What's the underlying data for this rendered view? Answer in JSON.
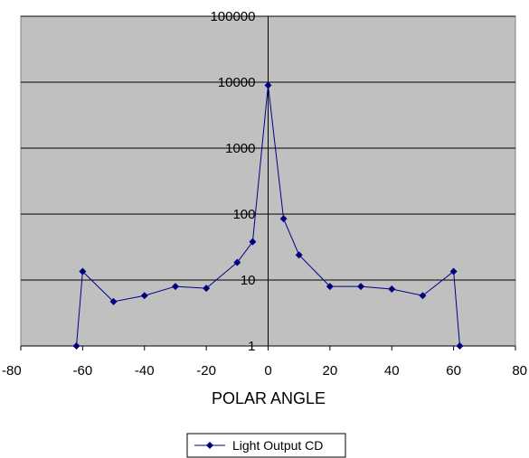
{
  "chart_data": {
    "type": "scatter",
    "title": "",
    "xlabel": "POLAR ANGLE",
    "ylabel": "",
    "xlim": [
      -80,
      80
    ],
    "ylim": [
      1,
      100000
    ],
    "yscale": "log",
    "x_ticks": [
      -80,
      -60,
      -40,
      -20,
      0,
      20,
      40,
      60,
      80
    ],
    "x_tick_labels": [
      "-80",
      "-60",
      "-40",
      "-20",
      "0",
      "20",
      "40",
      "60",
      "80"
    ],
    "y_ticks": [
      1,
      10,
      100,
      1000,
      10000,
      100000
    ],
    "y_tick_labels": [
      "1",
      "10",
      "100",
      "1000",
      "10000",
      "100000"
    ],
    "grid": "horizontal",
    "legend_position": "bottom",
    "plot_background": "#c0c0c0",
    "series": [
      {
        "name": "Light Output CD",
        "color": "#000080",
        "marker": "diamond",
        "x": [
          -62,
          -60,
          -50,
          -40,
          -30,
          -20,
          -10,
          -5,
          0,
          5,
          10,
          20,
          30,
          40,
          50,
          60,
          62
        ],
        "y": [
          1,
          13.5,
          4.7,
          5.8,
          8,
          7.5,
          18.5,
          38,
          9000,
          85,
          24,
          8,
          8,
          7.3,
          5.8,
          13.5,
          1
        ]
      }
    ]
  }
}
